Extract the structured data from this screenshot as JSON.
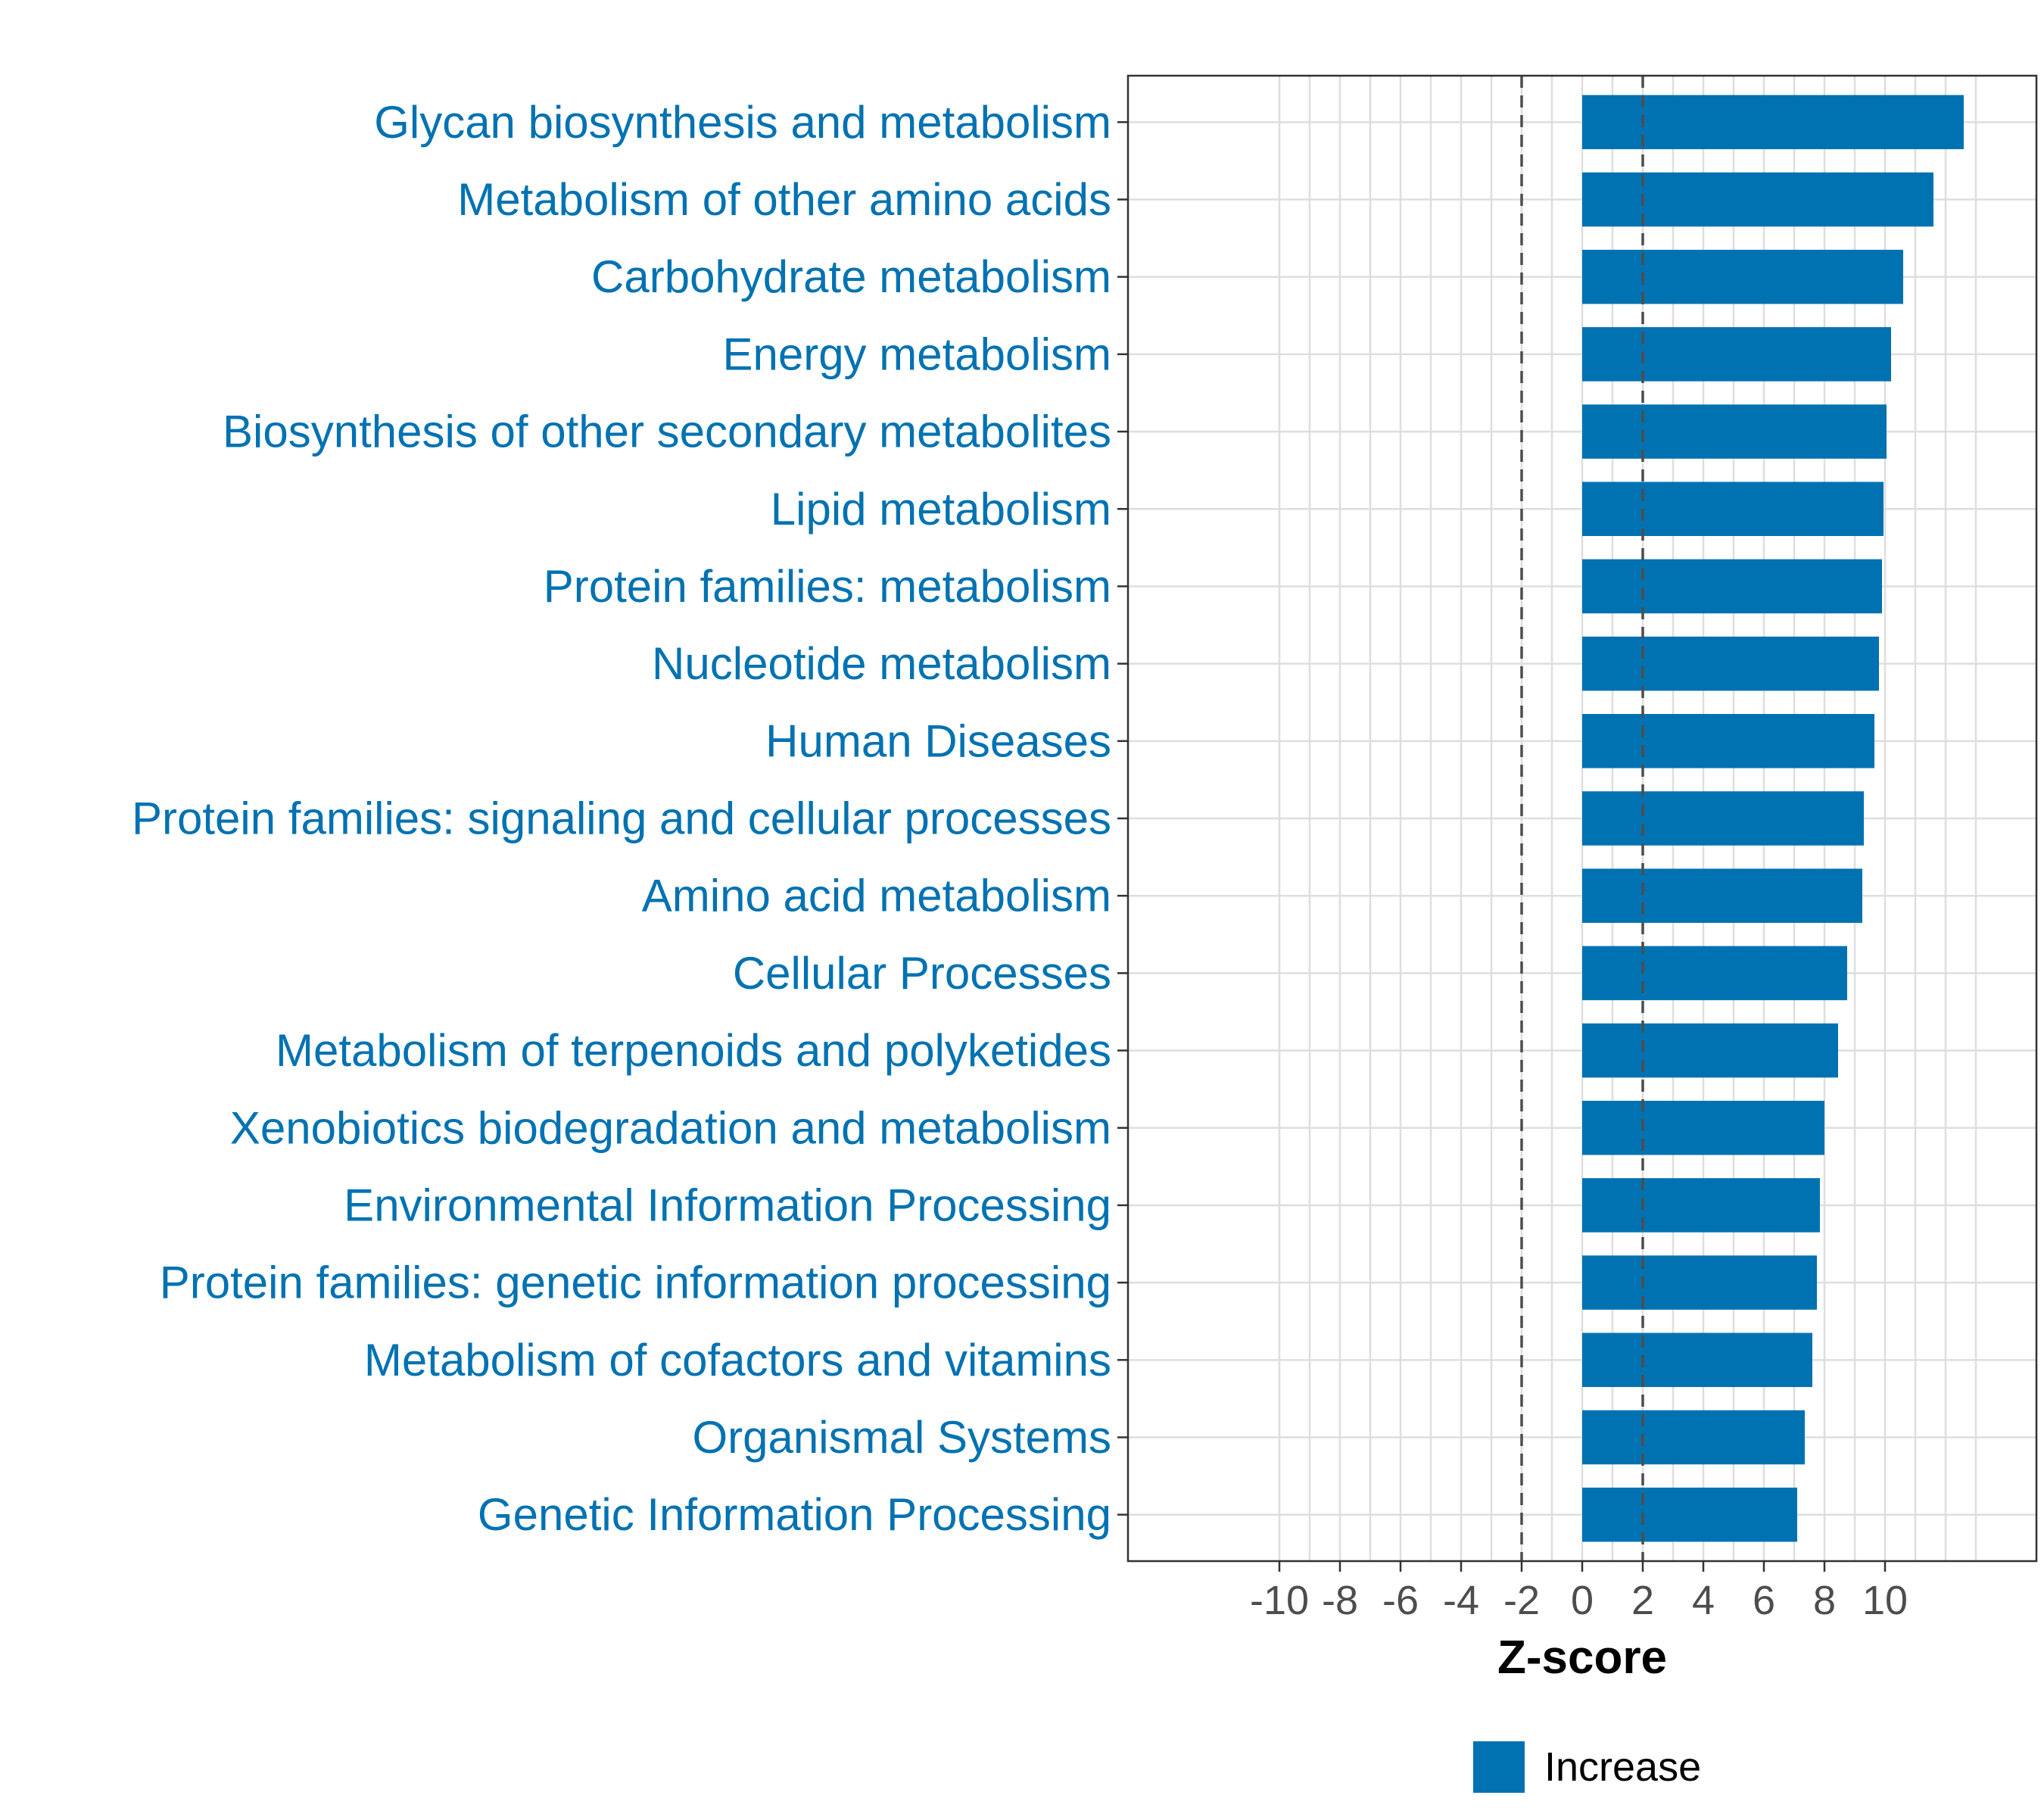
{
  "chart_data": {
    "type": "bar",
    "orientation": "horizontal",
    "categories": [
      "Glycan biosynthesis and metabolism",
      "Metabolism of other amino acids",
      "Carbohydrate metabolism",
      "Energy metabolism",
      "Biosynthesis of other secondary metabolites",
      "Lipid metabolism",
      "Protein families: metabolism",
      "Nucleotide metabolism",
      "Human Diseases",
      "Protein families: signaling and cellular processes",
      "Amino acid metabolism",
      "Cellular Processes",
      "Metabolism of terpenoids and polyketides",
      "Xenobiotics biodegradation and metabolism",
      "Environmental Information Processing",
      "Protein families: genetic information processing",
      "Metabolism of cofactors and vitamins",
      "Organismal Systems",
      "Genetic Information Processing"
    ],
    "series": [
      {
        "name": "Increase",
        "color": "#0072B2",
        "values": [
          12.6,
          11.6,
          10.6,
          10.2,
          10.05,
          9.95,
          9.9,
          9.8,
          9.65,
          9.3,
          9.25,
          8.75,
          8.45,
          8.0,
          7.85,
          7.75,
          7.6,
          7.35,
          7.1
        ]
      }
    ],
    "xlabel": "Z-score",
    "xlim": [
      -15,
      15
    ],
    "xticks": [
      -10,
      -8,
      -6,
      -4,
      -2,
      0,
      2,
      4,
      6,
      8,
      10
    ],
    "xtick_labels": [
      "-10",
      "-8",
      "-6",
      "-4",
      "-2",
      "0",
      "2",
      "4",
      "6",
      "8",
      "10"
    ],
    "reference_lines": [
      -2,
      2
    ],
    "grid": true,
    "legend_position": "bottom",
    "label_color": "#0072B2"
  }
}
